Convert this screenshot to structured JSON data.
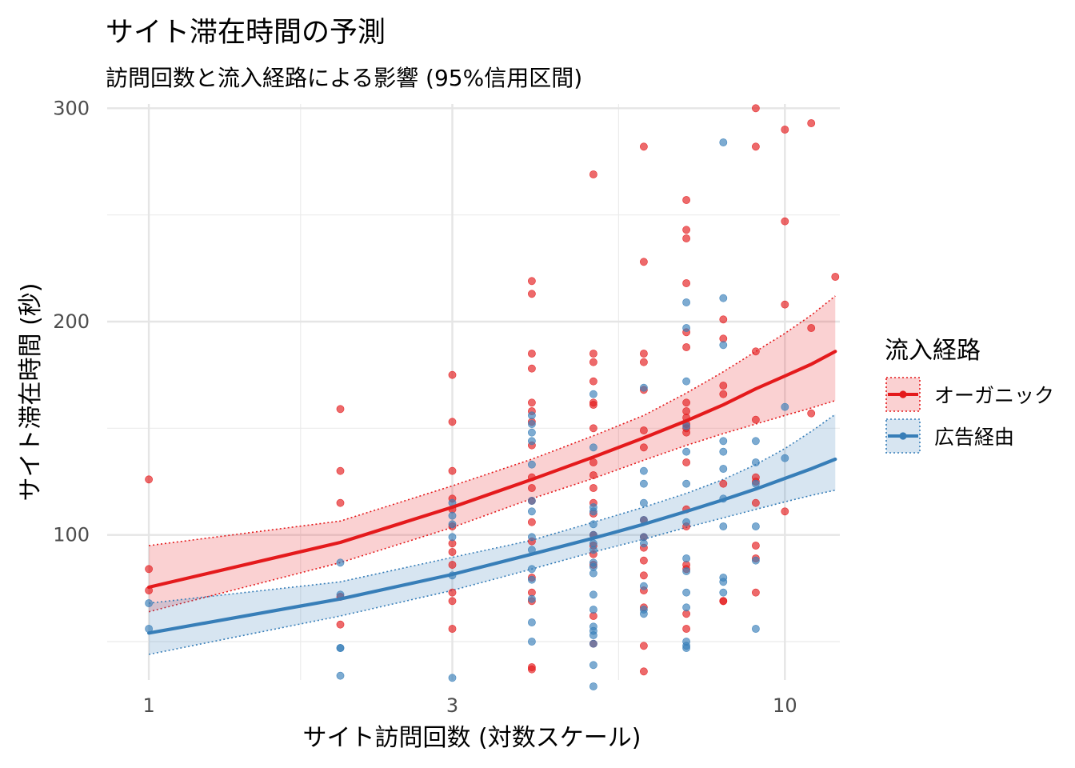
{
  "chart_data": {
    "type": "scatter",
    "title": "サイト滞在時間の予測",
    "subtitle": "訪問回数と流入経路による影響 (95%信用区間)",
    "xlabel": "サイト訪問回数 (対数スケール)",
    "ylabel": "サイト滞在時間 (秒)",
    "x_scale": "log10",
    "xlim": [
      0.86,
      12.2
    ],
    "ylim": [
      32,
      302
    ],
    "x_ticks": [
      1,
      3,
      10
    ],
    "x_tick_labels": [
      "1",
      "3",
      "10"
    ],
    "y_ticks": [
      100,
      200,
      300
    ],
    "y_tick_labels": [
      "100",
      "200",
      "300"
    ],
    "grid": true,
    "legend": {
      "title": "流入経路",
      "position": "right",
      "entries": [
        "オーガニック",
        "広告経由"
      ]
    },
    "series": [
      {
        "name": "オーガニック",
        "color": "#e41a1c",
        "points": [
          [
            1,
            126
          ],
          [
            1,
            84
          ],
          [
            1,
            74
          ],
          [
            2,
            159
          ],
          [
            2,
            130
          ],
          [
            2,
            115
          ],
          [
            2,
            71
          ],
          [
            2,
            58
          ],
          [
            3,
            175
          ],
          [
            3,
            153
          ],
          [
            3,
            130
          ],
          [
            3,
            117
          ],
          [
            3,
            112
          ],
          [
            3,
            104
          ],
          [
            3,
            96
          ],
          [
            3,
            92
          ],
          [
            3,
            86
          ],
          [
            3,
            73
          ],
          [
            3,
            69
          ],
          [
            3,
            56
          ],
          [
            4,
            219
          ],
          [
            4,
            213
          ],
          [
            4,
            185
          ],
          [
            4,
            178
          ],
          [
            4,
            162
          ],
          [
            4,
            158
          ],
          [
            4,
            153
          ],
          [
            4,
            142
          ],
          [
            4,
            127
          ],
          [
            4,
            122
          ],
          [
            4,
            116
          ],
          [
            4,
            106
          ],
          [
            4,
            97
          ],
          [
            4,
            80
          ],
          [
            4,
            73
          ],
          [
            4,
            69
          ],
          [
            4,
            38
          ],
          [
            4,
            37
          ],
          [
            5,
            269
          ],
          [
            5,
            185
          ],
          [
            5,
            181
          ],
          [
            5,
            172
          ],
          [
            5,
            162
          ],
          [
            5,
            161
          ],
          [
            5,
            150
          ],
          [
            5,
            134
          ],
          [
            5,
            128
          ],
          [
            5,
            122
          ],
          [
            5,
            115
          ],
          [
            5,
            110
          ],
          [
            5,
            100
          ],
          [
            5,
            95
          ],
          [
            5,
            91
          ],
          [
            5,
            86
          ],
          [
            5,
            62
          ],
          [
            5,
            49
          ],
          [
            6,
            282
          ],
          [
            6,
            228
          ],
          [
            6,
            185
          ],
          [
            6,
            181
          ],
          [
            6,
            168
          ],
          [
            6,
            149
          ],
          [
            6,
            141
          ],
          [
            6,
            107
          ],
          [
            6,
            99
          ],
          [
            6,
            94
          ],
          [
            6,
            88
          ],
          [
            6,
            81
          ],
          [
            6,
            74
          ],
          [
            6,
            66
          ],
          [
            6,
            48
          ],
          [
            6,
            36
          ],
          [
            7,
            257
          ],
          [
            7,
            243
          ],
          [
            7,
            239
          ],
          [
            7,
            218
          ],
          [
            7,
            195
          ],
          [
            7,
            188
          ],
          [
            7,
            162
          ],
          [
            7,
            158
          ],
          [
            7,
            155
          ],
          [
            7,
            152
          ],
          [
            7,
            150
          ],
          [
            7,
            148
          ],
          [
            7,
            134
          ],
          [
            7,
            112
          ],
          [
            7,
            104
          ],
          [
            7,
            86
          ],
          [
            7,
            84
          ],
          [
            7,
            63
          ],
          [
            7,
            56
          ],
          [
            8,
            201
          ],
          [
            8,
            192
          ],
          [
            8,
            170
          ],
          [
            8,
            166
          ],
          [
            8,
            124
          ],
          [
            8,
            69
          ],
          [
            8,
            69
          ],
          [
            9,
            300
          ],
          [
            9,
            282
          ],
          [
            9,
            186
          ],
          [
            9,
            154
          ],
          [
            9,
            127
          ],
          [
            9,
            125
          ],
          [
            9,
            115
          ],
          [
            9,
            95
          ],
          [
            9,
            89
          ],
          [
            9,
            73
          ],
          [
            10,
            290
          ],
          [
            10,
            247
          ],
          [
            10,
            208
          ],
          [
            10,
            111
          ],
          [
            11,
            293
          ],
          [
            11,
            197
          ],
          [
            11,
            157
          ],
          [
            12,
            221
          ]
        ],
        "fit": {
          "x": [
            1,
            2,
            3,
            4,
            5,
            6,
            7,
            8,
            9,
            10,
            11,
            12
          ],
          "y": [
            75.5,
            96.5,
            113,
            126,
            136.5,
            145.5,
            153.5,
            161,
            168.5,
            174.5,
            180,
            186
          ],
          "lower": [
            64,
            87,
            103.5,
            117,
            126.5,
            135,
            142,
            147.5,
            152,
            156,
            159.5,
            163
          ],
          "upper": [
            95,
            106.5,
            123,
            135.5,
            146.5,
            156,
            166.5,
            176.5,
            186,
            194.5,
            203,
            212
          ]
        }
      },
      {
        "name": "広告経由",
        "color": "#377eb8",
        "points": [
          [
            1,
            56
          ],
          [
            1,
            68
          ],
          [
            2,
            87
          ],
          [
            2,
            72
          ],
          [
            2,
            47
          ],
          [
            2,
            47
          ],
          [
            2,
            34
          ],
          [
            3,
            115
          ],
          [
            3,
            109
          ],
          [
            3,
            105
          ],
          [
            3,
            99
          ],
          [
            3,
            81
          ],
          [
            3,
            33
          ],
          [
            4,
            156
          ],
          [
            4,
            152
          ],
          [
            4,
            148
          ],
          [
            4,
            144
          ],
          [
            4,
            133
          ],
          [
            4,
            116
          ],
          [
            4,
            111
          ],
          [
            4,
            99
          ],
          [
            4,
            93
          ],
          [
            4,
            84
          ],
          [
            4,
            79
          ],
          [
            4,
            70
          ],
          [
            4,
            59
          ],
          [
            4,
            50
          ],
          [
            5,
            166
          ],
          [
            5,
            141
          ],
          [
            5,
            113
          ],
          [
            5,
            111
          ],
          [
            5,
            105
          ],
          [
            5,
            100
          ],
          [
            5,
            96
          ],
          [
            5,
            93
          ],
          [
            5,
            87
          ],
          [
            5,
            85
          ],
          [
            5,
            82
          ],
          [
            5,
            72
          ],
          [
            5,
            65
          ],
          [
            5,
            57
          ],
          [
            5,
            55
          ],
          [
            5,
            53
          ],
          [
            5,
            49
          ],
          [
            5,
            39
          ],
          [
            5,
            29
          ],
          [
            6,
            169
          ],
          [
            6,
            130
          ],
          [
            6,
            124
          ],
          [
            6,
            115
          ],
          [
            6,
            107
          ],
          [
            6,
            99
          ],
          [
            6,
            96
          ],
          [
            6,
            76
          ],
          [
            6,
            65
          ],
          [
            6,
            63
          ],
          [
            7,
            209
          ],
          [
            7,
            197
          ],
          [
            7,
            172
          ],
          [
            7,
            151
          ],
          [
            7,
            139
          ],
          [
            7,
            124
          ],
          [
            7,
            106
          ],
          [
            7,
            89
          ],
          [
            7,
            83
          ],
          [
            7,
            73
          ],
          [
            7,
            66
          ],
          [
            7,
            50
          ],
          [
            7,
            48
          ],
          [
            7,
            47
          ],
          [
            8,
            284
          ],
          [
            8,
            211
          ],
          [
            8,
            189
          ],
          [
            8,
            144
          ],
          [
            8,
            139
          ],
          [
            8,
            131
          ],
          [
            8,
            117
          ],
          [
            8,
            104
          ],
          [
            8,
            80
          ],
          [
            8,
            78
          ],
          [
            8,
            73
          ],
          [
            9,
            144
          ],
          [
            9,
            134
          ],
          [
            9,
            124
          ],
          [
            9,
            104
          ],
          [
            9,
            88
          ],
          [
            9,
            56
          ],
          [
            10,
            160
          ],
          [
            10,
            136
          ]
        ],
        "fit": {
          "x": [
            1,
            2,
            3,
            4,
            5,
            6,
            7,
            8,
            9,
            10,
            11,
            12
          ],
          "y": [
            54,
            70,
            81.5,
            91,
            98.5,
            105,
            111,
            116.5,
            121.5,
            126.5,
            131,
            135.5
          ],
          "lower": [
            44,
            62,
            74,
            84,
            92,
            98,
            103.5,
            108,
            112,
            115.5,
            118.5,
            121
          ],
          "upper": [
            68,
            78,
            89.5,
            97.5,
            106,
            113,
            119.5,
            126,
            133,
            140.5,
            148.5,
            156.5
          ]
        }
      }
    ]
  }
}
